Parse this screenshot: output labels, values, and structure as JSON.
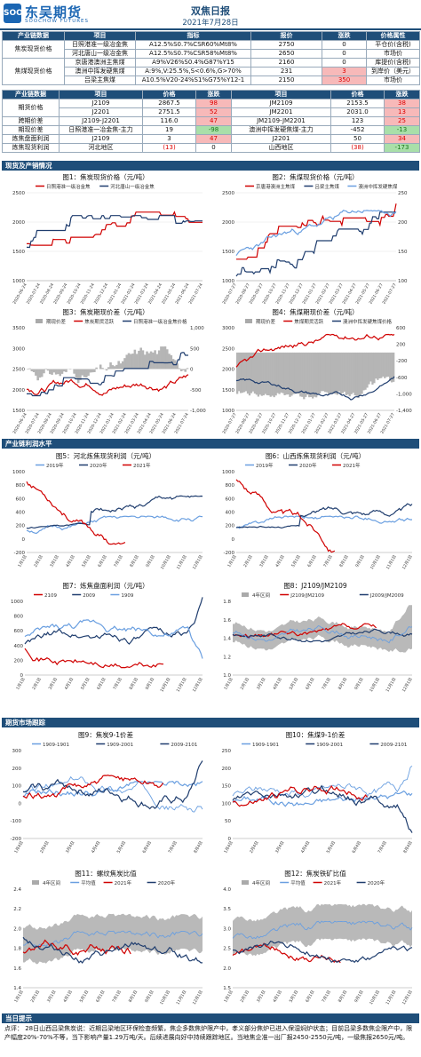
{
  "header": {
    "logo_mark": "SOO",
    "brand_cn": "东吴期货",
    "brand_en": "SOOCHOW FUTURES",
    "title": "双焦日报",
    "date": "2021年7月28日"
  },
  "spot_table": {
    "headers": [
      "产业链数据",
      "项目",
      "指标",
      "报价",
      "涨跌",
      "价格属性"
    ],
    "groups": [
      {
        "label": "焦炭现货价格",
        "rows": [
          {
            "item": "日照港准一级冶金焦",
            "spec": "A12.5%S0.7%CSR60%Mt8%",
            "price": "2750",
            "chg": "0",
            "attr": "平仓价(含税)"
          },
          {
            "item": "河北唐山一级冶金焦",
            "spec": "A12.5%S0.7%CSR58%Mt8%",
            "price": "2650",
            "chg": "0",
            "attr": "市场价"
          }
        ]
      },
      {
        "label": "焦煤现货价格",
        "rows": [
          {
            "item": "京唐港澳洲主焦煤",
            "spec": "A9%V26%S0.4%G87%Y15",
            "price": "2160",
            "chg": "0",
            "attr": "库提价(含税)"
          },
          {
            "item": "澳洲中挥发硬焦煤",
            "spec": "A:9%,V:25.5%,S<0.6%,G>70%",
            "price": "231",
            "chg": "3",
            "attr": "到岸价（美元）"
          },
          {
            "item": "吕梁主焦煤",
            "spec": "A10.5%V20-24%S1%G75%Y12-1",
            "price": "2150",
            "chg": "350",
            "attr": "市场价"
          }
        ]
      }
    ]
  },
  "futures_table": {
    "headers": [
      "产业链数据",
      "项目",
      "价格",
      "涨跌",
      "项目",
      "价格",
      "涨跌"
    ],
    "rows": [
      {
        "label": "期货价格",
        "a_item": "J2109",
        "a_price": "2867.5",
        "a_chg": "98",
        "b_item": "JM2109",
        "b_price": "2153.5",
        "b_chg": "38"
      },
      {
        "label": "",
        "a_item": "J2201",
        "a_price": "2751.5",
        "a_chg": "52",
        "b_item": "JM2201",
        "b_price": "2031.0",
        "b_chg": "13"
      },
      {
        "label": "跨期价差",
        "a_item": "J2109-J2201",
        "a_price": "116.0",
        "a_chg": "47",
        "b_item": "JM2109-JM2201",
        "b_price": "123",
        "b_chg": "25"
      },
      {
        "label": "期现价差",
        "a_item": "日照港准一冶金焦-主力",
        "a_price": "19",
        "a_chg": "-98",
        "b_item": "澳洲中挥发硬焦煤-主力",
        "b_price": "-452",
        "b_chg": "-13"
      },
      {
        "label": "炼焦盘面利润",
        "a_item": "J2109",
        "a_price": "3",
        "a_chg": "47",
        "b_item": "J2201",
        "b_price": "50",
        "b_chg": "34"
      },
      {
        "label": "炼焦现货利润",
        "a_item": "河北地区",
        "a_price": "(13)",
        "a_chg": "0",
        "b_item": "山西地区",
        "b_price": "(38)",
        "b_chg": "-173"
      }
    ]
  },
  "sections": {
    "s1": "现货及产销情况",
    "s2": "产业链利润水平",
    "s3": "期货市场跟踪",
    "s4": "当日提示"
  },
  "charts": {
    "c1": {
      "title": "图1：焦炭现货价格（元/吨）",
      "legend": [
        "日照港准一级冶金焦",
        "河北唐山一级冶金焦"
      ],
      "yticks": [
        "2500",
        "2000",
        "1500",
        "1000"
      ]
    },
    "c2": {
      "title": "图2：焦煤现货价格（元/吨）",
      "legend": [
        "京唐港澳洲主焦煤",
        "吕梁主焦煤",
        "澳洲中挥发硬焦煤"
      ],
      "yticks_l": [
        "2500",
        "2000",
        "1500",
        "1000"
      ],
      "yticks_r": [
        "250",
        "200",
        "150",
        "100"
      ]
    },
    "c3": {
      "title": "图3：焦炭期现价差（元/吨）",
      "legend": [
        "期现价差",
        "焦炭期货活跃",
        "日照港准一级冶金焦价格"
      ],
      "yticks_l": [
        "3500",
        "3000",
        "2500",
        "2000",
        "1500"
      ],
      "yticks_r": [
        "1,000",
        "500",
        "0",
        "-500",
        "-1,000"
      ]
    },
    "c4": {
      "title": "图4：焦煤期现价差（元/吨）",
      "legend": [
        "期现价差",
        "焦煤期货活跃",
        "澳洲中挥发硬焦煤价格"
      ],
      "yticks_l": [
        "3000",
        "2500",
        "2000",
        "1500",
        "1000"
      ],
      "yticks_r": [
        "600",
        "200",
        "-200",
        "-600",
        "-1,000",
        "-1,400"
      ]
    },
    "c5": {
      "title": "图5：河北炼焦现货利润（元/吨）",
      "legend": [
        "2019年",
        "2020年",
        "2021年"
      ],
      "yticks": [
        "1000",
        "800",
        "600",
        "400",
        "200",
        "0",
        "-200"
      ]
    },
    "c6": {
      "title": "图6：山西炼焦现货利润（元/吨）",
      "legend": [
        "2019年",
        "2020年",
        "2021年"
      ],
      "yticks": [
        "1000",
        "800",
        "600",
        "400",
        "200",
        "0",
        "-200"
      ]
    },
    "c7": {
      "title": "图7：炼焦盘面利润（元/吨）",
      "legend": [
        "2109",
        "2009",
        "1909"
      ],
      "yticks": [
        "1000",
        "800",
        "600",
        "400",
        "200",
        "0"
      ]
    },
    "c8": {
      "title": "图8：J2109/JM2109",
      "legend": [
        "4年区间",
        "J2109/JM2109",
        "J2009/JM2009",
        "平均值"
      ],
      "yticks": [
        "1.8",
        "1.6",
        "1.4",
        "1.2",
        "1.0"
      ]
    },
    "c9": {
      "title": "图9：焦炭9-1价差",
      "legend": [
        "1909-1901",
        "1909-2001",
        "2009-2101",
        "2109-2201"
      ],
      "yticks": [
        "300",
        "200",
        "100",
        "0",
        "-100",
        "-200"
      ]
    },
    "c10": {
      "title": "图10：焦煤9-1价差",
      "legend": [
        "1909-1901",
        "1909-2001",
        "2009-2101",
        "2109-2201"
      ],
      "yticks": [
        "250",
        "200",
        "150",
        "100",
        "50",
        "0"
      ]
    },
    "c11": {
      "title": "图11：螺纹焦炭比值",
      "legend": [
        "4年区间",
        "平均值",
        "2021年",
        "2020年"
      ],
      "yticks": [
        "2.4",
        "2.2",
        "2.0",
        "1.8",
        "1.6",
        "1.4"
      ]
    },
    "c12": {
      "title": "图12：焦炭铁矿比值",
      "legend": [
        "4年区间",
        "平均值",
        "2021年",
        "2020年"
      ],
      "yticks": [
        "4.0",
        "3.5",
        "3.0",
        "2.5",
        "2.0",
        "1.5"
      ]
    }
  },
  "date_ticks_a": [
    "2020-06-24",
    "2020-07-24",
    "2020-08-24",
    "2020-09-24",
    "2020-10-24",
    "2020-11-24",
    "2020-12-24",
    "2021-01-24",
    "2021-02-24",
    "2021-03-24",
    "2021-04-24",
    "2021-05-24",
    "2021-06-24",
    "2021-07-24"
  ],
  "date_ticks_b": [
    "2020-07-27",
    "2020-08-27",
    "2020-09-27",
    "2020-10-27",
    "2020-11-27",
    "2020-12-27",
    "2021-01-27",
    "2021-02-27",
    "2021-03-27",
    "2021-04-27",
    "2021-05-27",
    "2021-06-27",
    "2021-07-27"
  ],
  "month_ticks": [
    "1月1日",
    "2月1日",
    "3月1日",
    "4月1日",
    "5月1日",
    "6月1日",
    "7月1日",
    "8月1日",
    "9月1日",
    "10月1日",
    "11月1日",
    "12月1日"
  ],
  "spread_ticks": [
    "1月4日",
    "2月4日",
    "3月4日",
    "4月4日",
    "5月4日",
    "6月4日",
    "7月4日",
    "8月4日"
  ],
  "tip": {
    "text": "点评： 28日山西吕梁焦炭说：近期吕梁地区环保检查频繁，焦企多数焦炉限产中，孝义部分焦炉已进入保湿焖炉状态；目前吕梁多数焦企限产中，限产幅度20%-70%不等，当下影响产量1.29万吨/天。后续进展向好中持续跟踪地区。当地焦企准一出厂报2450-2550元/吨，一级焦报2650元/吨。"
  },
  "colors": {
    "red": "#d00000",
    "navy": "#1f3d6e",
    "lightblue": "#6a9fe0",
    "gray": "#aaaaaa",
    "header": "#1f4e79"
  }
}
